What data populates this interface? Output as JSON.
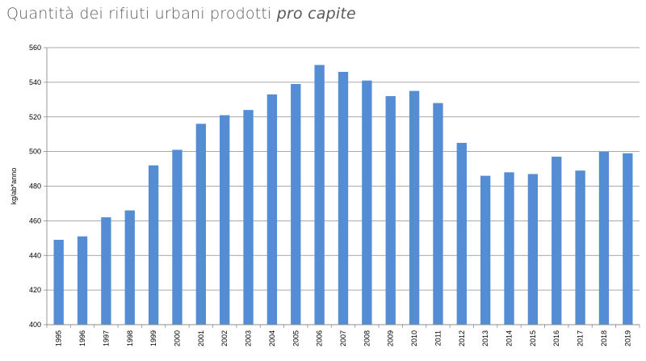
{
  "header": {
    "title_main": "Quantità dei rifiuti urbani prodotti ",
    "title_italic": "pro capite"
  },
  "chart_data": {
    "type": "bar",
    "title": "Quantità dei rifiuti urbani prodotti pro capite",
    "xlabel": "",
    "ylabel": "kg/ab*anno",
    "ylim": [
      400,
      560
    ],
    "yticks": [
      400,
      420,
      440,
      460,
      480,
      500,
      520,
      540,
      560
    ],
    "grid": true,
    "legend": "none",
    "bar_color": "#548DD4",
    "categories": [
      "1995",
      "1996",
      "1997",
      "1998",
      "1999",
      "2000",
      "2001",
      "2002",
      "2003",
      "2004",
      "2005",
      "2006",
      "2007",
      "2008",
      "2009",
      "2010",
      "2011",
      "2012",
      "2013",
      "2014",
      "2015",
      "2016",
      "2017",
      "2018",
      "2019"
    ],
    "values": [
      449,
      451,
      462,
      466,
      492,
      501,
      516,
      521,
      524,
      533,
      539,
      550,
      546,
      541,
      532,
      535,
      528,
      505,
      486,
      488,
      487,
      497,
      489,
      500,
      499
    ]
  }
}
